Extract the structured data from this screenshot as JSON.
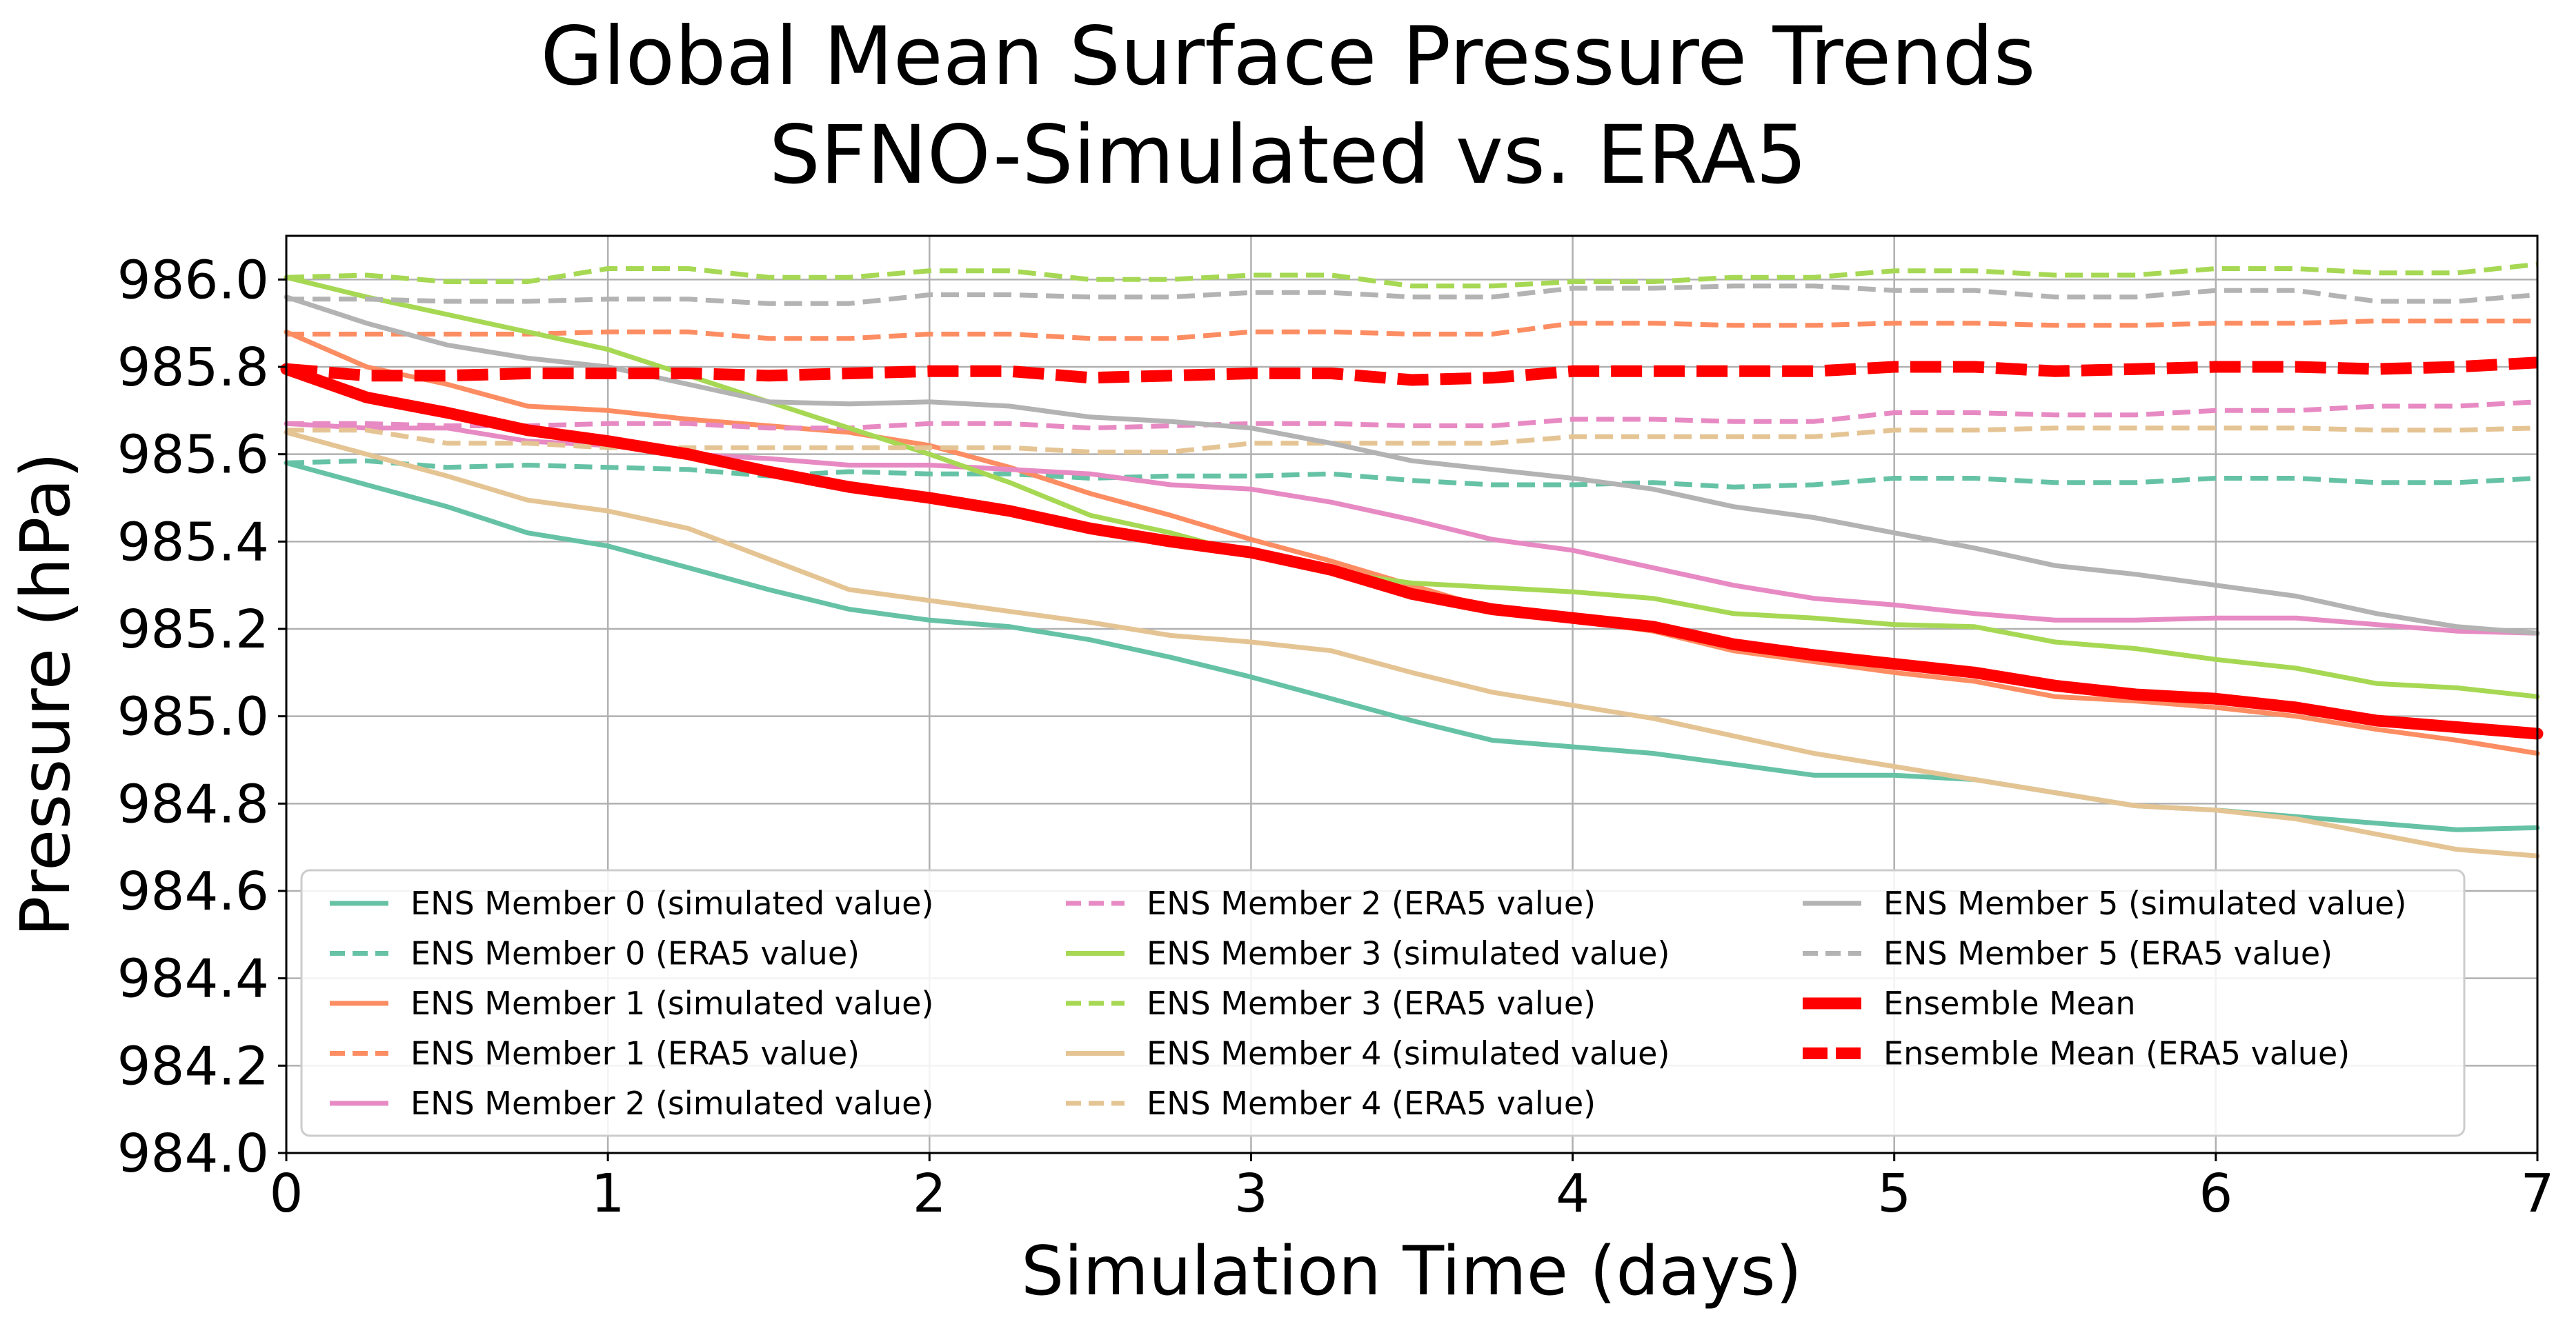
{
  "chart_data": {
    "type": "line",
    "title": "Global Mean Surface Pressure Trends",
    "subtitle": "SFNO-Simulated vs. ERA5",
    "xlabel": "Simulation Time (days)",
    "ylabel": "Pressure (hPa)",
    "xlim": [
      0,
      7
    ],
    "ylim": [
      984.0,
      986.1
    ],
    "xticks": [
      0,
      1,
      2,
      3,
      4,
      5,
      6,
      7
    ],
    "yticks": [
      984.0,
      984.2,
      984.4,
      984.6,
      984.8,
      985.0,
      985.2,
      985.4,
      985.6,
      985.8,
      986.0
    ],
    "grid": true,
    "legend_position": "lower-center",
    "x": [
      0,
      0.25,
      0.5,
      0.75,
      1.0,
      1.25,
      1.5,
      1.75,
      2.0,
      2.25,
      2.5,
      2.75,
      3.0,
      3.25,
      3.5,
      3.75,
      4.0,
      4.25,
      4.5,
      4.75,
      5.0,
      5.25,
      5.5,
      5.75,
      6.0,
      6.25,
      6.5,
      6.75,
      7.0
    ],
    "series": [
      {
        "name": "ENS Member 0 (simulated value)",
        "color": "#66c2a5",
        "style": "solid",
        "width": 7,
        "values": [
          985.58,
          985.53,
          985.48,
          985.42,
          985.39,
          985.34,
          985.29,
          985.245,
          985.22,
          985.205,
          985.175,
          985.135,
          985.09,
          985.04,
          984.99,
          984.945,
          984.93,
          984.915,
          984.89,
          984.865,
          984.865,
          984.855,
          984.825,
          984.795,
          984.785,
          984.77,
          984.755,
          984.74,
          984.745
        ]
      },
      {
        "name": "ENS Member 0 (ERA5 value)",
        "color": "#66c2a5",
        "style": "dashed",
        "width": 7,
        "values": [
          985.58,
          985.585,
          985.57,
          985.575,
          985.57,
          985.565,
          985.55,
          985.56,
          985.555,
          985.555,
          985.545,
          985.55,
          985.55,
          985.555,
          985.54,
          985.53,
          985.53,
          985.535,
          985.525,
          985.53,
          985.545,
          985.545,
          985.535,
          985.535,
          985.545,
          985.545,
          985.535,
          985.535,
          985.545
        ]
      },
      {
        "name": "ENS Member 1 (simulated value)",
        "color": "#fc8d62",
        "style": "solid",
        "width": 7,
        "values": [
          985.88,
          985.8,
          985.76,
          985.71,
          985.7,
          985.68,
          985.665,
          985.65,
          985.62,
          985.57,
          985.51,
          985.46,
          985.405,
          985.355,
          985.3,
          985.245,
          985.22,
          985.195,
          985.15,
          985.125,
          985.1,
          985.08,
          985.045,
          985.035,
          985.02,
          985.0,
          984.97,
          984.945,
          984.915
        ]
      },
      {
        "name": "ENS Member 1 (ERA5 value)",
        "color": "#fc8d62",
        "style": "dashed",
        "width": 7,
        "values": [
          985.875,
          985.875,
          985.875,
          985.875,
          985.88,
          985.88,
          985.865,
          985.865,
          985.875,
          985.875,
          985.865,
          985.865,
          985.88,
          985.88,
          985.875,
          985.875,
          985.9,
          985.9,
          985.895,
          985.895,
          985.9,
          985.9,
          985.895,
          985.895,
          985.9,
          985.9,
          985.905,
          985.905,
          985.905
        ]
      },
      {
        "name": "ENS Member 2 (simulated value)",
        "color": "#e78ac3",
        "style": "solid",
        "width": 7,
        "values": [
          985.67,
          985.66,
          985.66,
          985.63,
          985.62,
          985.6,
          985.59,
          985.575,
          985.575,
          985.565,
          985.555,
          985.53,
          985.52,
          985.49,
          985.45,
          985.405,
          985.38,
          985.34,
          985.3,
          985.27,
          985.255,
          985.235,
          985.22,
          985.22,
          985.225,
          985.225,
          985.21,
          985.195,
          985.19
        ]
      },
      {
        "name": "ENS Member 2 (ERA5 value)",
        "color": "#e78ac3",
        "style": "dashed",
        "width": 7,
        "values": [
          985.67,
          985.67,
          985.665,
          985.665,
          985.67,
          985.67,
          985.66,
          985.66,
          985.67,
          985.67,
          985.66,
          985.665,
          985.67,
          985.67,
          985.665,
          985.665,
          985.68,
          985.68,
          985.675,
          985.675,
          985.695,
          985.695,
          985.69,
          985.69,
          985.7,
          985.7,
          985.71,
          985.71,
          985.72
        ]
      },
      {
        "name": "ENS Member 3 (simulated value)",
        "color": "#a6d854",
        "style": "solid",
        "width": 7,
        "values": [
          986.005,
          985.96,
          985.92,
          985.88,
          985.84,
          985.78,
          985.72,
          985.66,
          985.6,
          985.535,
          985.46,
          985.42,
          985.37,
          985.33,
          985.305,
          985.295,
          985.285,
          985.27,
          985.235,
          985.225,
          985.21,
          985.205,
          985.17,
          985.155,
          985.13,
          985.11,
          985.075,
          985.065,
          985.045
        ]
      },
      {
        "name": "ENS Member 3 (ERA5 value)",
        "color": "#a6d854",
        "style": "dashed",
        "width": 7,
        "values": [
          986.005,
          986.01,
          985.995,
          985.995,
          986.025,
          986.025,
          986.005,
          986.005,
          986.02,
          986.02,
          986.0,
          986.0,
          986.01,
          986.01,
          985.985,
          985.985,
          985.995,
          985.995,
          986.005,
          986.005,
          986.02,
          986.02,
          986.01,
          986.01,
          986.025,
          986.025,
          986.015,
          986.015,
          986.035
        ]
      },
      {
        "name": "ENS Member 4 (simulated value)",
        "color": "#e5c494",
        "style": "solid",
        "width": 7,
        "values": [
          985.65,
          985.6,
          985.55,
          985.495,
          985.47,
          985.43,
          985.36,
          985.29,
          985.265,
          985.24,
          985.215,
          985.185,
          985.17,
          985.15,
          985.1,
          985.055,
          985.025,
          984.995,
          984.955,
          984.915,
          984.885,
          984.855,
          984.825,
          984.795,
          984.785,
          984.765,
          984.73,
          984.695,
          984.68
        ]
      },
      {
        "name": "ENS Member 4 (ERA5 value)",
        "color": "#e5c494",
        "style": "dashed",
        "width": 7,
        "values": [
          985.655,
          985.655,
          985.625,
          985.625,
          985.615,
          985.615,
          985.615,
          985.615,
          985.615,
          985.615,
          985.605,
          985.605,
          985.625,
          985.625,
          985.625,
          985.625,
          985.64,
          985.64,
          985.64,
          985.64,
          985.655,
          985.655,
          985.66,
          985.66,
          985.66,
          985.66,
          985.655,
          985.655,
          985.66
        ]
      },
      {
        "name": "ENS Member 5 (simulated value)",
        "color": "#b3b3b3",
        "style": "solid",
        "width": 7,
        "values": [
          985.96,
          985.9,
          985.85,
          985.82,
          985.8,
          985.76,
          985.72,
          985.715,
          985.72,
          985.71,
          985.685,
          985.675,
          985.66,
          985.625,
          985.585,
          985.565,
          985.545,
          985.52,
          985.48,
          985.455,
          985.42,
          985.385,
          985.345,
          985.325,
          985.3,
          985.275,
          985.235,
          985.205,
          985.19
        ]
      },
      {
        "name": "ENS Member 5 (ERA5 value)",
        "color": "#b3b3b3",
        "style": "dashed",
        "width": 7,
        "values": [
          985.955,
          985.955,
          985.95,
          985.95,
          985.955,
          985.955,
          985.945,
          985.945,
          985.965,
          985.965,
          985.96,
          985.96,
          985.97,
          985.97,
          985.96,
          985.96,
          985.98,
          985.98,
          985.985,
          985.985,
          985.975,
          985.975,
          985.96,
          985.96,
          985.975,
          985.975,
          985.95,
          985.95,
          985.965
        ]
      },
      {
        "name": "Ensemble Mean",
        "color": "#ff0000",
        "style": "solid",
        "width": 17,
        "values": [
          985.795,
          985.73,
          985.695,
          985.655,
          985.63,
          985.6,
          985.56,
          985.525,
          985.5,
          985.47,
          985.43,
          985.4,
          985.375,
          985.335,
          985.28,
          985.245,
          985.225,
          985.205,
          985.165,
          985.14,
          985.12,
          985.1,
          985.07,
          985.05,
          985.04,
          985.02,
          984.99,
          984.975,
          984.96
        ]
      },
      {
        "name": "Ensemble Mean (ERA5 value)",
        "color": "#ff0000",
        "style": "dashed",
        "width": 17,
        "values": [
          985.795,
          985.78,
          985.78,
          985.785,
          985.785,
          985.785,
          985.78,
          985.785,
          985.79,
          985.79,
          985.775,
          985.78,
          985.785,
          985.785,
          985.77,
          985.775,
          985.79,
          985.79,
          985.79,
          985.79,
          985.8,
          985.8,
          985.79,
          985.795,
          985.8,
          985.8,
          985.795,
          985.8,
          985.81
        ]
      }
    ]
  }
}
